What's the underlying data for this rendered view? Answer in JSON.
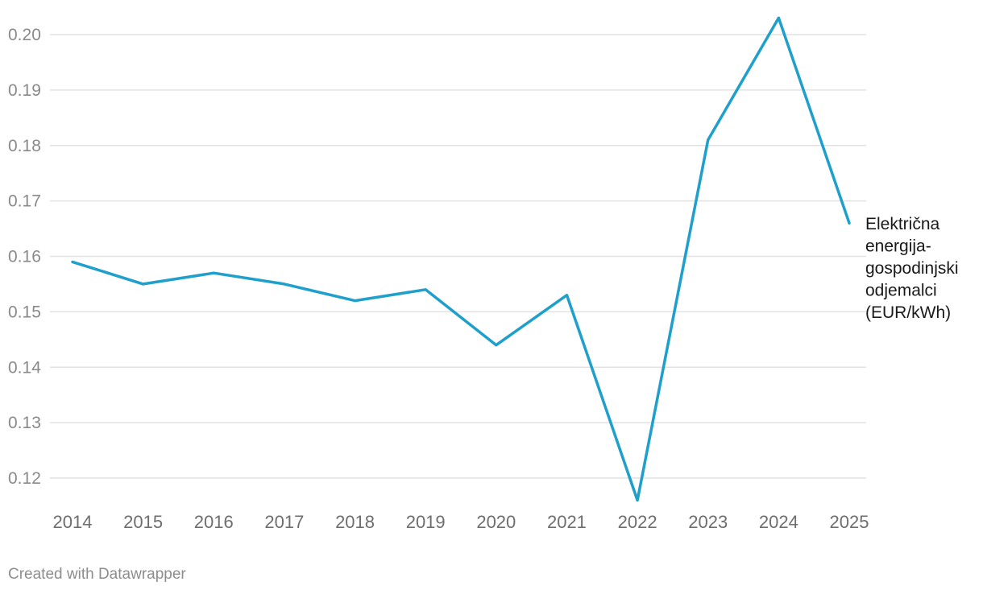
{
  "chart_data": {
    "type": "line",
    "x": [
      "2014",
      "2015",
      "2016",
      "2017",
      "2018",
      "2019",
      "2020",
      "2021",
      "2022",
      "2023",
      "2024",
      "2025"
    ],
    "series": [
      {
        "name": "Električna energija-gospodinjski odjemalci (EUR/kWh)",
        "label_lines": [
          "Električna",
          "energija-",
          "gospodinjski",
          "odjemalci",
          "(EUR/kWh)"
        ],
        "values": [
          0.159,
          0.155,
          0.157,
          0.155,
          0.152,
          0.154,
          0.144,
          0.153,
          0.116,
          0.181,
          0.203,
          0.166
        ],
        "color": "#1f9fcc"
      }
    ],
    "yticks": [
      0.12,
      0.13,
      0.14,
      0.15,
      0.16,
      0.17,
      0.18,
      0.19,
      0.2
    ],
    "ytick_labels": [
      "0.12",
      "0.13",
      "0.14",
      "0.15",
      "0.16",
      "0.17",
      "0.18",
      "0.19",
      "0.20"
    ],
    "ylim": [
      0.116,
      0.203
    ],
    "grid": true,
    "legend": "direct label at line end"
  },
  "footer": {
    "credit": "Created with Datawrapper"
  }
}
